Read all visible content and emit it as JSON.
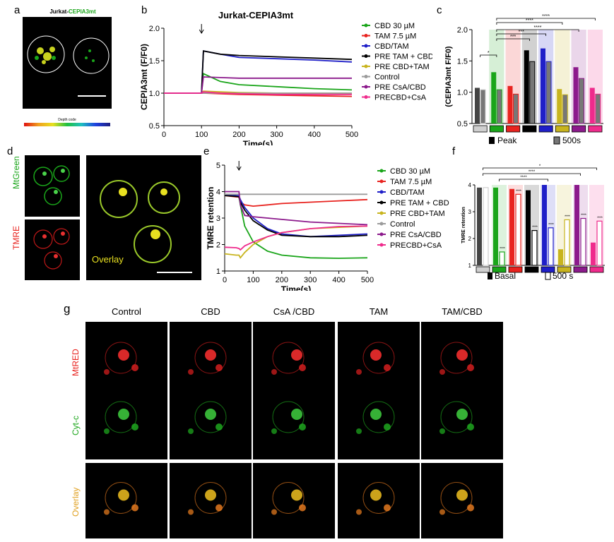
{
  "panels": {
    "a": {
      "letter": "a",
      "title_prefix": "Jurkat-",
      "title_highlight": "CEPIA3mt",
      "colorbar_label": "Depth code"
    },
    "b": {
      "letter": "b",
      "title": "Jurkat-CEPIA3mt"
    },
    "c": {
      "letter": "c"
    },
    "d": {
      "letter": "d",
      "labels": {
        "mtgreen": "MtGreen",
        "tmre": "TMRE",
        "overlay": "Overlay"
      }
    },
    "e": {
      "letter": "e"
    },
    "f": {
      "letter": "f"
    },
    "g": {
      "letter": "g",
      "columns": [
        "Control",
        "CBD",
        "CsA /CBD",
        "TAM",
        "TAM/CBD"
      ],
      "rows": [
        "MtRED",
        "Cyt-c",
        "Overlay"
      ]
    }
  },
  "colors": {
    "cbd": "#1aa51a",
    "tam": "#e8231f",
    "cbd_tam": "#1f1fc8",
    "pre_tam_cbd": "#000000",
    "pre_cbd_tam": "#c8b41e",
    "control": "#9b9b9b",
    "pre_csa_cbd": "#8c1a8c",
    "precbd_csa": "#ef2b8c"
  },
  "chart_data": [
    {
      "id": "b",
      "type": "line",
      "title": "Jurkat-CEPIA3mt",
      "xlabel": "Time(s)",
      "ylabel": "CEPIA3mt (F/F0)",
      "xlim": [
        0,
        500
      ],
      "ylim": [
        0.5,
        2.0
      ],
      "xticks": [
        0,
        100,
        200,
        300,
        400,
        500
      ],
      "yticks": [
        "0.5",
        "1.0",
        "1.5",
        "2.0"
      ],
      "x": [
        0,
        50,
        95,
        100,
        105,
        150,
        200,
        300,
        400,
        500
      ],
      "series": [
        {
          "name": "CBD 30 µM",
          "color": "#1aa51a",
          "values": [
            1.0,
            1.0,
            1.0,
            1.0,
            1.3,
            1.18,
            1.13,
            1.1,
            1.07,
            1.05
          ]
        },
        {
          "name": "TAM 7.5 µM",
          "color": "#e8231f",
          "values": [
            1.0,
            1.0,
            1.0,
            1.0,
            1.0,
            0.99,
            0.98,
            0.97,
            0.96,
            0.95
          ]
        },
        {
          "name": "CBD/TAM",
          "color": "#1f1fc8",
          "values": [
            1.0,
            1.0,
            1.0,
            1.0,
            1.65,
            1.6,
            1.55,
            1.53,
            1.51,
            1.48
          ]
        },
        {
          "name": "PRE TAM + CBD",
          "color": "#000000",
          "values": [
            1.0,
            1.0,
            1.0,
            1.0,
            1.65,
            1.6,
            1.58,
            1.56,
            1.54,
            1.52
          ]
        },
        {
          "name": "PRE CBD+TAM",
          "color": "#c8b41e",
          "values": [
            1.0,
            1.0,
            1.0,
            1.0,
            1.03,
            1.02,
            1.01,
            1.0,
            1.0,
            1.0
          ]
        },
        {
          "name": "Control",
          "color": "#9b9b9b",
          "values": [
            1.0,
            1.0,
            1.0,
            1.0,
            1.0,
            1.0,
            1.0,
            1.0,
            1.0,
            1.0
          ]
        },
        {
          "name": "PRE CsA/CBD",
          "color": "#8c1a8c",
          "values": [
            1.0,
            1.0,
            1.0,
            1.0,
            1.25,
            1.24,
            1.23,
            1.23,
            1.23,
            1.23
          ]
        },
        {
          "name": "PRECBD+CsA",
          "color": "#ef2b8c",
          "values": [
            1.0,
            1.0,
            1.0,
            1.0,
            1.02,
            1.0,
            0.99,
            0.98,
            0.98,
            0.98
          ]
        }
      ],
      "arrow_at": 100
    },
    {
      "id": "c",
      "type": "bar",
      "ylabel": "(CEPIA3mt F/F0)",
      "ylim": [
        0.5,
        2.0
      ],
      "yticks": [
        "0.5",
        "1.0",
        "1.5",
        "2.0"
      ],
      "legend": [
        "Peak",
        "500s"
      ],
      "groups": [
        {
          "color": "#cfcfcf",
          "peak": 1.07,
          "s500": 1.04
        },
        {
          "color": "#1aa51a",
          "peak": 1.32,
          "s500": 1.04
        },
        {
          "color": "#e8231f",
          "peak": 1.1,
          "s500": 0.97
        },
        {
          "color": "#000000",
          "peak": 1.67,
          "s500": 1.49
        },
        {
          "color": "#1f1fc8",
          "peak": 1.7,
          "s500": 1.49
        },
        {
          "color": "#c8b41e",
          "peak": 1.05,
          "s500": 0.96
        },
        {
          "color": "#8c1a8c",
          "peak": 1.4,
          "s500": 1.22
        },
        {
          "color": "#ef2b8c",
          "peak": 1.07,
          "s500": 0.97
        }
      ],
      "significance": [
        "*",
        "***",
        "***",
        "****",
        "****",
        "****"
      ]
    },
    {
      "id": "e",
      "type": "line",
      "xlabel": "Time(s)",
      "ylabel": "TMRE retention",
      "xlim": [
        0,
        500
      ],
      "ylim": [
        1,
        5
      ],
      "xticks": [
        0,
        100,
        200,
        300,
        400,
        500
      ],
      "yticks": [
        "1",
        "2",
        "3",
        "4",
        "5"
      ],
      "x": [
        0,
        40,
        50,
        55,
        70,
        100,
        150,
        200,
        300,
        400,
        500
      ],
      "series": [
        {
          "name": "CBD 30 µM",
          "color": "#1aa51a",
          "values": [
            3.9,
            3.85,
            3.8,
            3.5,
            2.7,
            2.1,
            1.75,
            1.6,
            1.5,
            1.48,
            1.5
          ]
        },
        {
          "name": "TAM 7.5 µM",
          "color": "#e8231f",
          "values": [
            3.85,
            3.8,
            3.8,
            3.6,
            3.5,
            3.45,
            3.5,
            3.55,
            3.6,
            3.65,
            3.7
          ]
        },
        {
          "name": "CBD/TAM",
          "color": "#1f1fc8",
          "values": [
            3.9,
            3.85,
            3.85,
            3.7,
            3.4,
            3.0,
            2.6,
            2.4,
            2.3,
            2.35,
            2.4
          ]
        },
        {
          "name": "PRE TAM + CBD",
          "color": "#000000",
          "values": [
            3.85,
            3.82,
            3.8,
            3.6,
            3.3,
            2.9,
            2.55,
            2.35,
            2.3,
            2.3,
            2.35
          ]
        },
        {
          "name": "PRE CBD+TAM",
          "color": "#c8b41e",
          "values": [
            1.65,
            1.6,
            1.6,
            1.5,
            1.7,
            2.0,
            2.3,
            2.45,
            2.6,
            2.65,
            2.7
          ]
        },
        {
          "name": "Control",
          "color": "#9b9b9b",
          "values": [
            3.9,
            3.9,
            3.9,
            3.9,
            3.9,
            3.9,
            3.9,
            3.9,
            3.9,
            3.9,
            3.9
          ]
        },
        {
          "name": "PRE CsA/CBD",
          "color": "#8c1a8c",
          "values": [
            4.0,
            4.0,
            4.0,
            3.5,
            3.1,
            3.05,
            3.0,
            2.95,
            2.85,
            2.8,
            2.75
          ]
        },
        {
          "name": "PRECBD+CsA",
          "color": "#ef2b8c",
          "values": [
            1.9,
            1.88,
            1.85,
            1.8,
            1.95,
            2.1,
            2.3,
            2.45,
            2.6,
            2.68,
            2.7
          ]
        }
      ],
      "arrow_at": 50
    },
    {
      "id": "f",
      "type": "bar",
      "ylabel": "TMRE retention",
      "ylim": [
        1,
        4
      ],
      "yticks": [
        "1",
        "2",
        "3",
        "4"
      ],
      "legend": [
        "Basal",
        "500 s"
      ],
      "groups": [
        {
          "color": "#cfcfcf",
          "basal": 3.9,
          "s500": 3.9
        },
        {
          "color": "#1aa51a",
          "basal": 3.9,
          "s500": 1.5
        },
        {
          "color": "#e8231f",
          "basal": 3.85,
          "s500": 3.65
        },
        {
          "color": "#000000",
          "basal": 3.8,
          "s500": 2.3
        },
        {
          "color": "#1f1fc8",
          "basal": 4.0,
          "s500": 2.4
        },
        {
          "color": "#c8b41e",
          "basal": 1.6,
          "s500": 2.7
        },
        {
          "color": "#8c1a8c",
          "basal": 4.0,
          "s500": 2.75
        },
        {
          "color": "#ef2b8c",
          "basal": 1.85,
          "s500": 2.65
        }
      ],
      "significance": [
        "*",
        "****",
        "****"
      ],
      "bar_marks": [
        "****",
        "****",
        "****",
        "****",
        "****",
        "****",
        "****"
      ]
    }
  ]
}
